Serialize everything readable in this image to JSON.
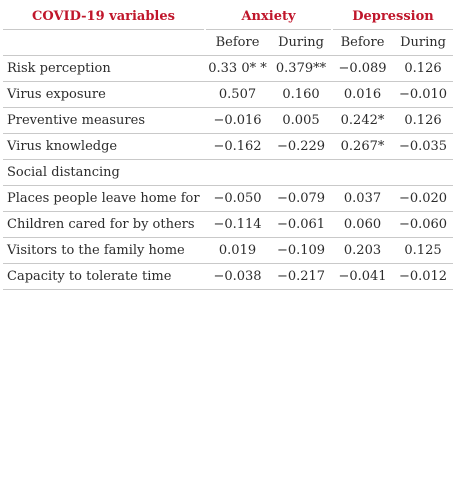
{
  "table": {
    "header": {
      "variable_col": "COVID-19 variables",
      "group_anxiety": "Anxiety",
      "group_depression": "Depression"
    },
    "subheader": {
      "anx_before": "Before",
      "anx_during": "During",
      "dep_before": "Before",
      "dep_during": "During"
    },
    "rows": [
      {
        "label": "Risk perception",
        "values": [
          "0.33 0* *",
          "0.379**",
          "−0.089",
          "0.126"
        ]
      },
      {
        "label": "Virus exposure",
        "values": [
          "0.507",
          "0.160",
          "0.016",
          "−0.010"
        ]
      },
      {
        "label": "Preventive measures",
        "values": [
          "−0.016",
          "0.005",
          "0.242*",
          "0.126"
        ]
      },
      {
        "label": "Virus knowledge",
        "values": [
          "−0.162",
          "−0.229",
          "0.267*",
          "−0.035"
        ]
      },
      {
        "label": "Social distancing",
        "values": [
          "",
          "",
          "",
          ""
        ]
      },
      {
        "label": "Places people leave home for",
        "values": [
          "−0.050",
          "−0.079",
          "0.037",
          "−0.020"
        ]
      },
      {
        "label": "Children cared for by others",
        "values": [
          "−0.114",
          "−0.061",
          "0.060",
          "−0.060"
        ]
      },
      {
        "label": "Visitors to the family home",
        "values": [
          "0.019",
          "−0.109",
          "0.203",
          "0.125"
        ]
      },
      {
        "label": "Capacity to tolerate time",
        "values": [
          "−0.038",
          "−0.217",
          "−0.041",
          "−0.012"
        ]
      }
    ]
  }
}
